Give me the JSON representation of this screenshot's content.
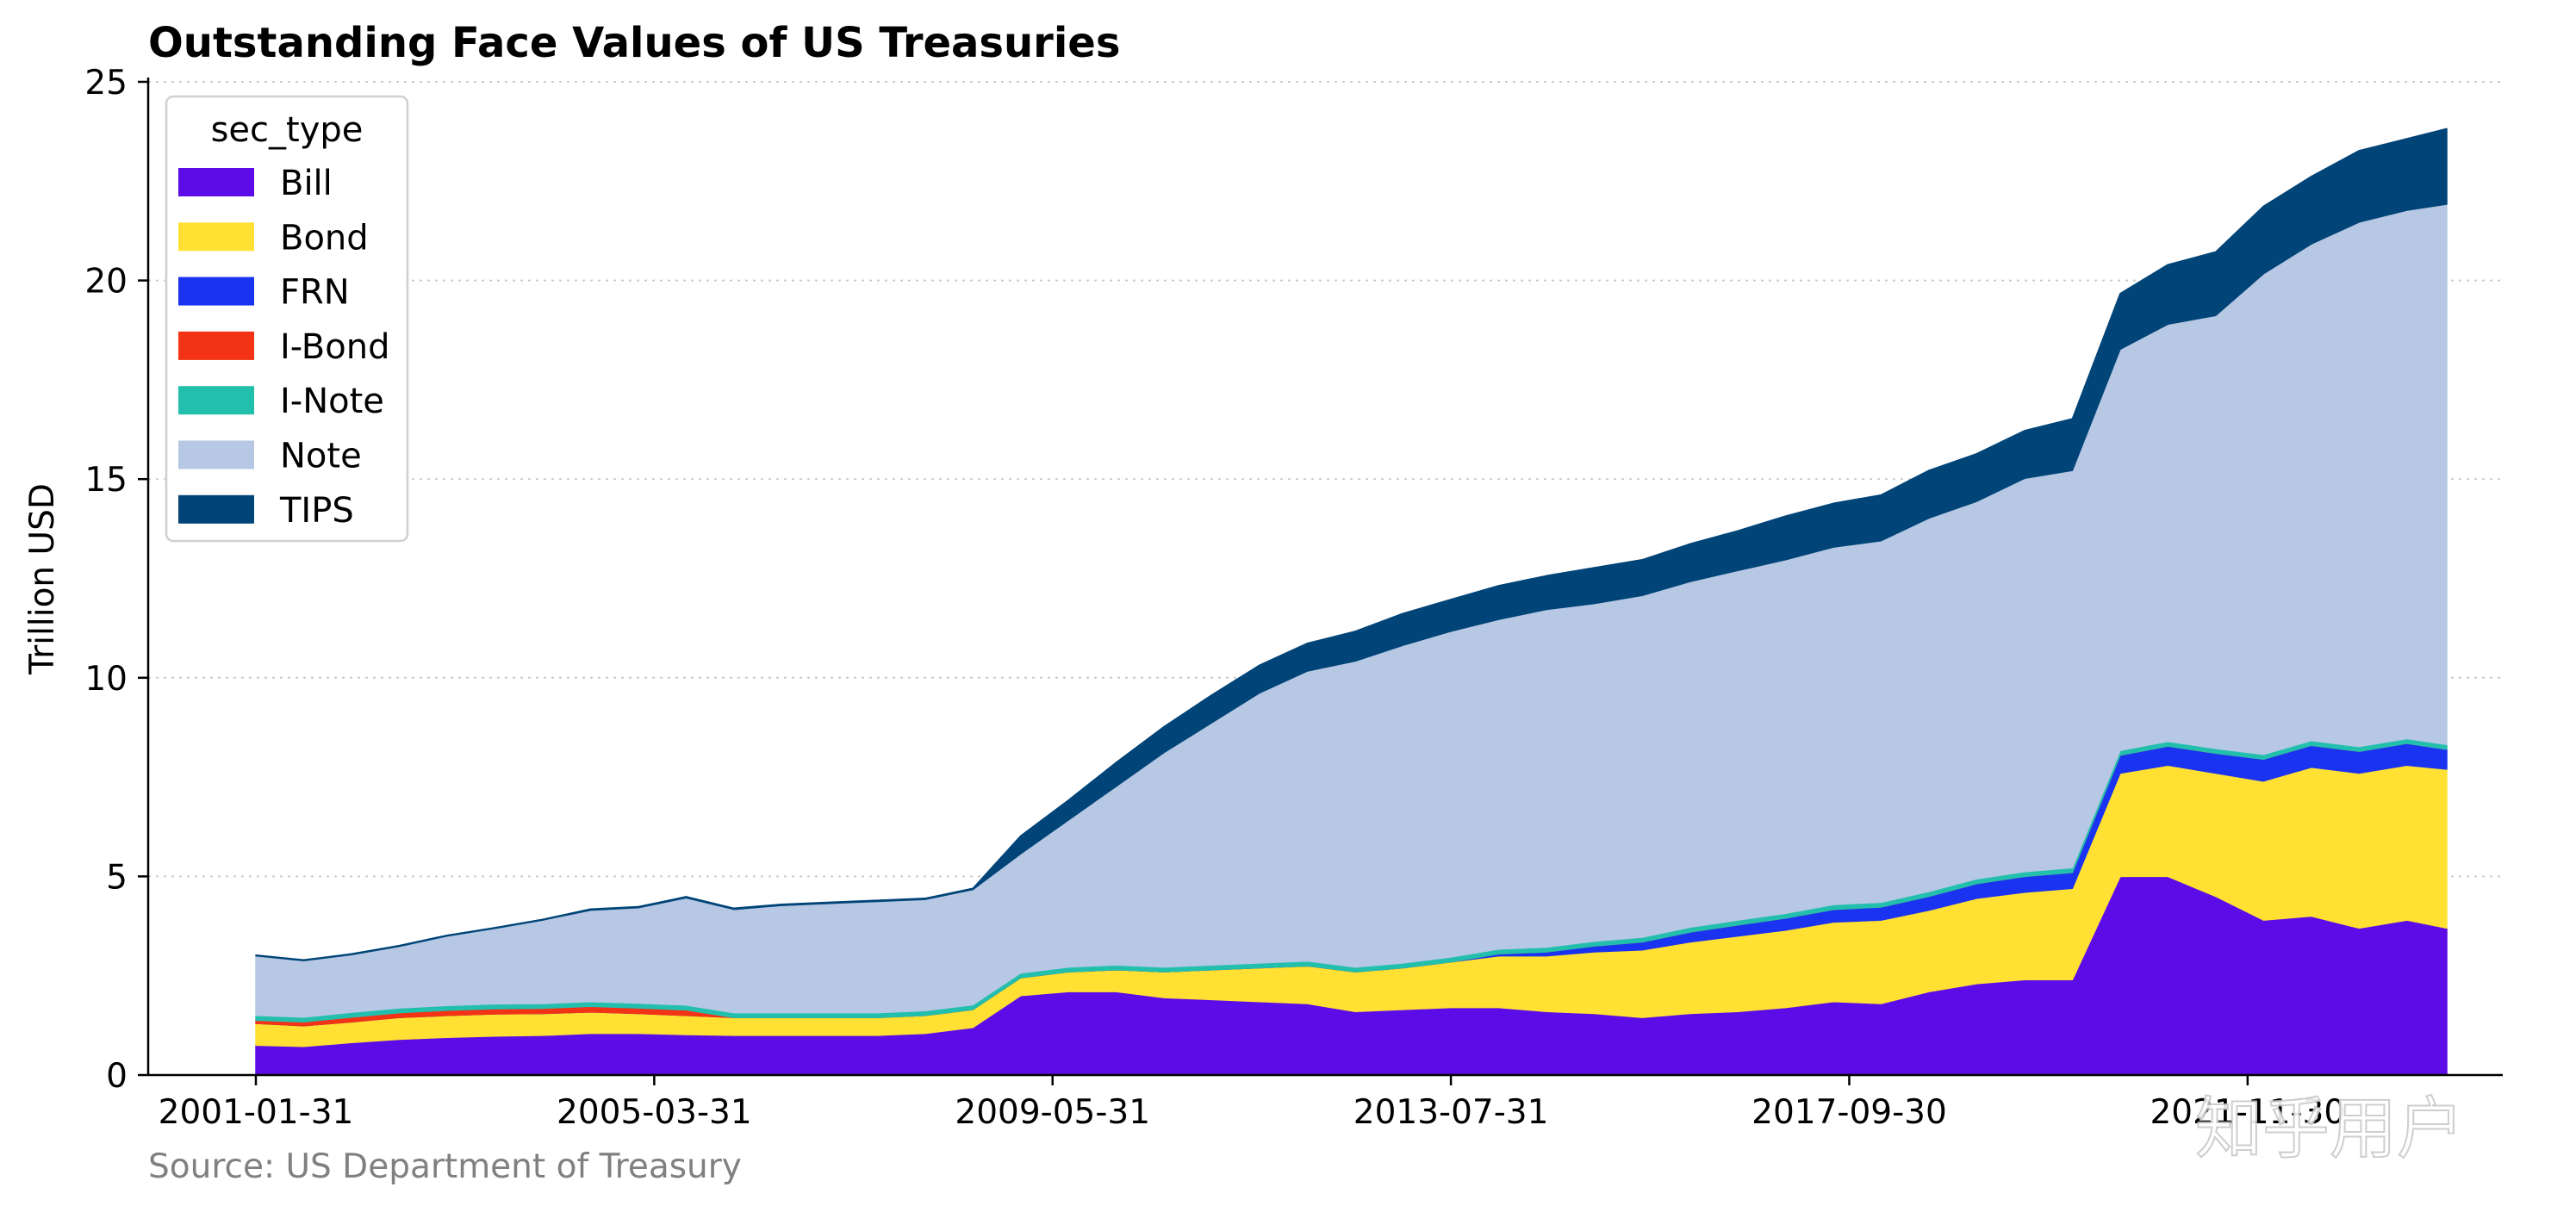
{
  "chart_data": {
    "type": "area",
    "stacked": true,
    "title": "Outstanding Face Values of US Treasuries",
    "ylabel": "Trillion USD",
    "xlabel": "",
    "ylim": [
      0,
      25
    ],
    "yticks": [
      0,
      5,
      10,
      15,
      20,
      25
    ],
    "xtick_labels": [
      "2001-01-31",
      "2005-03-31",
      "2009-05-31",
      "2013-07-31",
      "2017-09-30",
      "2021-11-30"
    ],
    "x": [
      "2001-01",
      "2001-07",
      "2002-01",
      "2002-07",
      "2003-01",
      "2003-07",
      "2004-01",
      "2004-07",
      "2005-01",
      "2005-07",
      "2006-01",
      "2006-07",
      "2007-01",
      "2007-07",
      "2008-01",
      "2008-07",
      "2009-01",
      "2009-07",
      "2010-01",
      "2010-07",
      "2011-01",
      "2011-07",
      "2012-01",
      "2012-07",
      "2013-01",
      "2013-07",
      "2014-01",
      "2014-07",
      "2015-01",
      "2015-07",
      "2016-01",
      "2016-07",
      "2017-01",
      "2017-07",
      "2018-01",
      "2018-07",
      "2019-01",
      "2019-07",
      "2020-01",
      "2020-07",
      "2021-01",
      "2021-07",
      "2022-01",
      "2022-07",
      "2023-01",
      "2023-07",
      "2023-12"
    ],
    "grid": {
      "y": true,
      "x": false
    },
    "legend": {
      "title": "sec_type",
      "placement": "upper-left"
    },
    "series": [
      {
        "name": "Bill",
        "color": "#5c0ce6",
        "values": [
          0.75,
          0.72,
          0.82,
          0.9,
          0.95,
          0.98,
          1.0,
          1.05,
          1.05,
          1.02,
          1.0,
          1.0,
          1.0,
          1.0,
          1.05,
          1.2,
          2.0,
          2.1,
          2.1,
          1.95,
          1.9,
          1.85,
          1.8,
          1.6,
          1.65,
          1.7,
          1.7,
          1.6,
          1.55,
          1.45,
          1.55,
          1.6,
          1.7,
          1.85,
          1.8,
          2.1,
          2.3,
          2.4,
          2.4,
          5.0,
          5.0,
          4.5,
          3.9,
          4.0,
          3.7,
          3.9,
          3.7
        ]
      },
      {
        "name": "Bond",
        "color": "#ffe033",
        "values": [
          0.55,
          0.52,
          0.52,
          0.55,
          0.55,
          0.56,
          0.55,
          0.54,
          0.5,
          0.48,
          0.45,
          0.45,
          0.45,
          0.45,
          0.45,
          0.45,
          0.45,
          0.5,
          0.55,
          0.65,
          0.75,
          0.85,
          0.95,
          1.0,
          1.05,
          1.15,
          1.3,
          1.4,
          1.55,
          1.7,
          1.8,
          1.9,
          1.95,
          2.0,
          2.1,
          2.05,
          2.15,
          2.2,
          2.3,
          2.6,
          2.8,
          3.1,
          3.5,
          3.75,
          3.9,
          3.9,
          4.0
        ]
      },
      {
        "name": "FRN",
        "color": "#1a33f0",
        "values": [
          0,
          0,
          0,
          0,
          0,
          0,
          0,
          0,
          0,
          0,
          0,
          0,
          0,
          0,
          0,
          0,
          0,
          0,
          0,
          0,
          0,
          0,
          0,
          0,
          0,
          0,
          0.05,
          0.1,
          0.15,
          0.2,
          0.25,
          0.28,
          0.3,
          0.32,
          0.33,
          0.35,
          0.37,
          0.4,
          0.4,
          0.45,
          0.48,
          0.5,
          0.55,
          0.55,
          0.55,
          0.55,
          0.5
        ]
      },
      {
        "name": "I-Bond",
        "color": "#f33316",
        "values": [
          0.08,
          0.1,
          0.12,
          0.12,
          0.13,
          0.13,
          0.13,
          0.14,
          0.14,
          0.14,
          0,
          0,
          0,
          0,
          0,
          0,
          0,
          0,
          0,
          0,
          0,
          0,
          0,
          0,
          0,
          0,
          0,
          0,
          0,
          0,
          0,
          0,
          0,
          0,
          0,
          0,
          0,
          0,
          0,
          0,
          0,
          0,
          0,
          0,
          0,
          0,
          0
        ]
      },
      {
        "name": "I-Note",
        "color": "#22bfad",
        "values": [
          0.12,
          0.12,
          0.12,
          0.12,
          0.12,
          0.12,
          0.12,
          0.12,
          0.12,
          0.12,
          0.12,
          0.12,
          0.12,
          0.12,
          0.12,
          0.12,
          0.12,
          0.12,
          0.12,
          0.12,
          0.12,
          0.12,
          0.12,
          0.12,
          0.12,
          0.12,
          0.12,
          0.12,
          0.12,
          0.12,
          0.12,
          0.12,
          0.12,
          0.12,
          0.12,
          0.12,
          0.12,
          0.12,
          0.12,
          0.12,
          0.12,
          0.12,
          0.12,
          0.12,
          0.12,
          0.12,
          0.12
        ]
      },
      {
        "name": "Note",
        "color": "#b6c8e3",
        "values": [
          1.5,
          1.42,
          1.45,
          1.55,
          1.75,
          1.9,
          2.1,
          2.3,
          2.4,
          2.7,
          2.6,
          2.7,
          2.75,
          2.8,
          2.8,
          2.9,
          3.0,
          3.7,
          4.5,
          5.4,
          6.1,
          6.8,
          7.3,
          7.7,
          8.0,
          8.2,
          8.3,
          8.5,
          8.5,
          8.6,
          8.7,
          8.8,
          8.9,
          9.0,
          9.1,
          9.4,
          9.5,
          9.9,
          10.0,
          10.1,
          10.5,
          10.9,
          12.1,
          12.5,
          13.2,
          13.3,
          13.6
        ]
      },
      {
        "name": "TIPS",
        "color": "#004478",
        "values": [
          0.02,
          0.02,
          0.02,
          0.02,
          0.02,
          0.02,
          0.02,
          0.03,
          0.03,
          0.03,
          0.03,
          0.03,
          0.03,
          0.03,
          0.03,
          0.03,
          0.45,
          0.5,
          0.6,
          0.65,
          0.7,
          0.7,
          0.7,
          0.75,
          0.8,
          0.8,
          0.85,
          0.85,
          0.9,
          0.9,
          0.95,
          1.0,
          1.1,
          1.1,
          1.15,
          1.2,
          1.2,
          1.2,
          1.3,
          1.4,
          1.5,
          1.6,
          1.7,
          1.7,
          1.8,
          1.8,
          1.9
        ]
      }
    ]
  },
  "source_note": "Source: US Department of Treasury",
  "watermark": "知乎用户"
}
